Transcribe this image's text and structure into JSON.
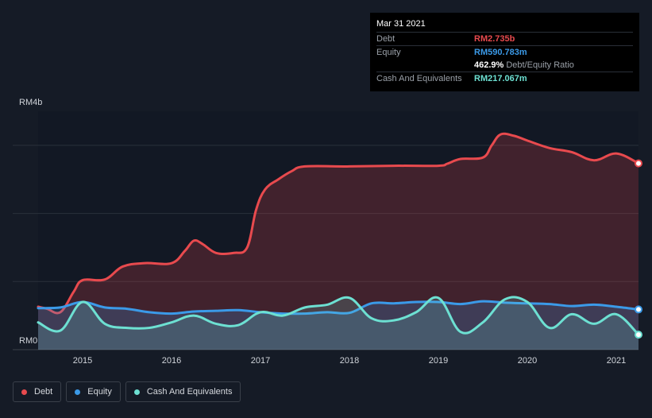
{
  "tooltip": {
    "date": "Mar 31 2021",
    "rows": [
      {
        "key": "Debt",
        "value": "RM2.735b",
        "color": "#e84a4e"
      },
      {
        "key": "Equity",
        "value": "RM590.783m",
        "color": "#3b9ae8"
      },
      {
        "key": "",
        "value": "462.9%",
        "suffix": "Debt/Equity Ratio",
        "color": "#ffffff"
      },
      {
        "key": "Cash And Equivalents",
        "value": "RM217.067m",
        "color": "#6de0d2"
      }
    ]
  },
  "legend": [
    {
      "label": "Debt",
      "color": "#e84a4e"
    },
    {
      "label": "Equity",
      "color": "#3b9ae8"
    },
    {
      "label": "Cash And Equivalents",
      "color": "#6de0d2"
    }
  ],
  "chart_data": {
    "type": "area",
    "y_unit": "RM (billions)",
    "ylim": [
      0,
      3.5
    ],
    "y_tick_labels": [
      {
        "value": 0,
        "label": "RM0"
      },
      {
        "value": 3.5,
        "label": "RM4b"
      }
    ],
    "xlim": [
      2014.5,
      2021.25
    ],
    "x_ticks": [
      2015,
      2016,
      2017,
      2018,
      2019,
      2020,
      2021
    ],
    "grid": true,
    "legend_position": "bottom-left",
    "series": [
      {
        "name": "Debt",
        "color": "#e84a4e",
        "x": [
          2014.5,
          2014.6,
          2014.75,
          2014.9,
          2015.0,
          2015.25,
          2015.45,
          2015.7,
          2016.0,
          2016.15,
          2016.25,
          2016.35,
          2016.5,
          2016.7,
          2016.85,
          2016.95,
          2017.05,
          2017.2,
          2017.35,
          2017.5,
          2018.0,
          2018.5,
          2019.0,
          2019.1,
          2019.25,
          2019.5,
          2019.6,
          2019.7,
          2019.85,
          2020.0,
          2020.25,
          2020.5,
          2020.75,
          2021.0,
          2021.25
        ],
        "values": [
          0.63,
          0.6,
          0.55,
          0.85,
          1.02,
          1.03,
          1.22,
          1.27,
          1.27,
          1.45,
          1.6,
          1.55,
          1.42,
          1.42,
          1.5,
          2.05,
          2.35,
          2.5,
          2.62,
          2.69,
          2.69,
          2.7,
          2.7,
          2.73,
          2.8,
          2.82,
          3.0,
          3.16,
          3.14,
          3.07,
          2.96,
          2.9,
          2.78,
          2.88,
          2.735
        ]
      },
      {
        "name": "Equity",
        "color": "#3b9ae8",
        "x": [
          2014.5,
          2014.75,
          2015.0,
          2015.25,
          2015.5,
          2015.75,
          2016.0,
          2016.25,
          2016.5,
          2016.75,
          2017.0,
          2017.25,
          2017.5,
          2017.75,
          2018.0,
          2018.25,
          2018.5,
          2018.75,
          2019.0,
          2019.25,
          2019.5,
          2019.75,
          2020.0,
          2020.25,
          2020.5,
          2020.75,
          2021.0,
          2021.25
        ],
        "values": [
          0.61,
          0.62,
          0.7,
          0.62,
          0.6,
          0.55,
          0.53,
          0.56,
          0.57,
          0.58,
          0.55,
          0.53,
          0.53,
          0.55,
          0.54,
          0.68,
          0.68,
          0.7,
          0.7,
          0.67,
          0.71,
          0.69,
          0.68,
          0.67,
          0.64,
          0.66,
          0.63,
          0.59
        ]
      },
      {
        "name": "Cash And Equivalents",
        "color": "#6de0d2",
        "x": [
          2014.5,
          2014.75,
          2015.0,
          2015.25,
          2015.5,
          2015.75,
          2016.0,
          2016.25,
          2016.5,
          2016.75,
          2017.0,
          2017.25,
          2017.5,
          2017.75,
          2018.0,
          2018.25,
          2018.5,
          2018.75,
          2019.0,
          2019.25,
          2019.5,
          2019.75,
          2020.0,
          2020.25,
          2020.5,
          2020.75,
          2021.0,
          2021.25
        ],
        "values": [
          0.4,
          0.28,
          0.7,
          0.38,
          0.32,
          0.32,
          0.4,
          0.5,
          0.38,
          0.36,
          0.55,
          0.5,
          0.62,
          0.66,
          0.76,
          0.46,
          0.43,
          0.55,
          0.76,
          0.26,
          0.4,
          0.74,
          0.7,
          0.32,
          0.52,
          0.38,
          0.52,
          0.22
        ]
      }
    ]
  }
}
